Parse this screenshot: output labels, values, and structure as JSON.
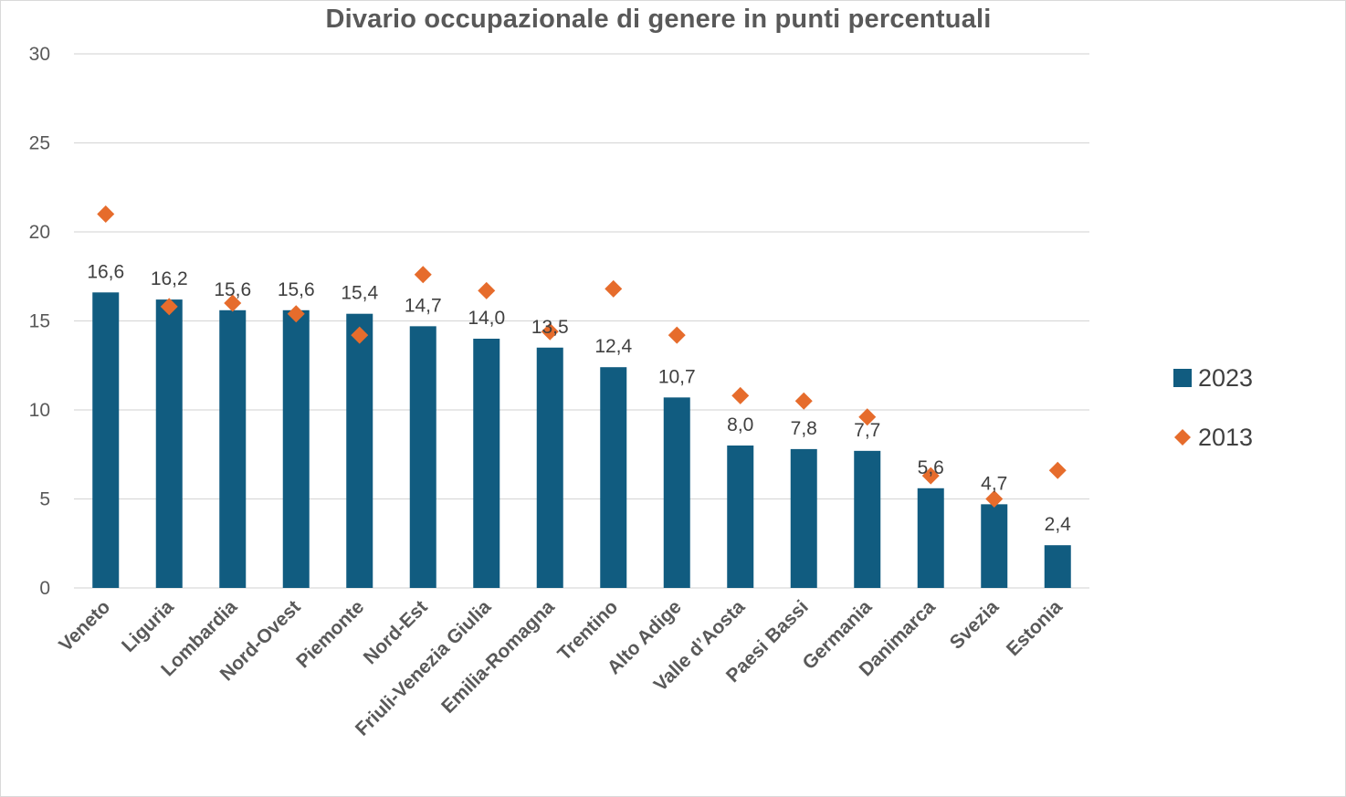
{
  "chart_data": {
    "type": "bar",
    "title": "Divario occupazionale di genere in punti percentuali",
    "xlabel": "",
    "ylabel": "",
    "ylim": [
      0,
      30
    ],
    "yticks": [
      "0",
      "5",
      "10",
      "15",
      "20",
      "25",
      "30"
    ],
    "grid": true,
    "legend_position": "right",
    "categories": [
      "Veneto",
      "Liguria",
      "Lombardia",
      "Nord-Ovest",
      "Piemonte",
      "Nord-Est",
      "Friuli-Venezia Giulia",
      "Emilia-Romagna",
      "Trentino",
      "Alto Adige",
      "Valle d’Aosta",
      "Paesi Bassi",
      "Germania",
      "Danimarca",
      "Svezia",
      "Estonia"
    ],
    "series": [
      {
        "name": "2023",
        "kind": "bar",
        "color": "#115c80",
        "values": [
          16.6,
          16.2,
          15.6,
          15.6,
          15.4,
          14.7,
          14.0,
          13.5,
          12.4,
          10.7,
          8.0,
          7.8,
          7.7,
          5.6,
          4.7,
          2.4
        ],
        "labels": [
          "16,6",
          "16,2",
          "15,6",
          "15,6",
          "15,4",
          "14,7",
          "14,0",
          "13,5",
          "12,4",
          "10,7",
          "8,0",
          "7,8",
          "7,7",
          "5,6",
          "4,7",
          "2,4"
        ]
      },
      {
        "name": "2013",
        "kind": "marker-diamond",
        "color": "#e66c2c",
        "values": [
          21.0,
          15.8,
          16.0,
          15.4,
          14.2,
          17.6,
          16.7,
          14.4,
          16.8,
          14.2,
          10.8,
          10.5,
          9.6,
          6.3,
          5.0,
          6.6
        ]
      }
    ]
  }
}
